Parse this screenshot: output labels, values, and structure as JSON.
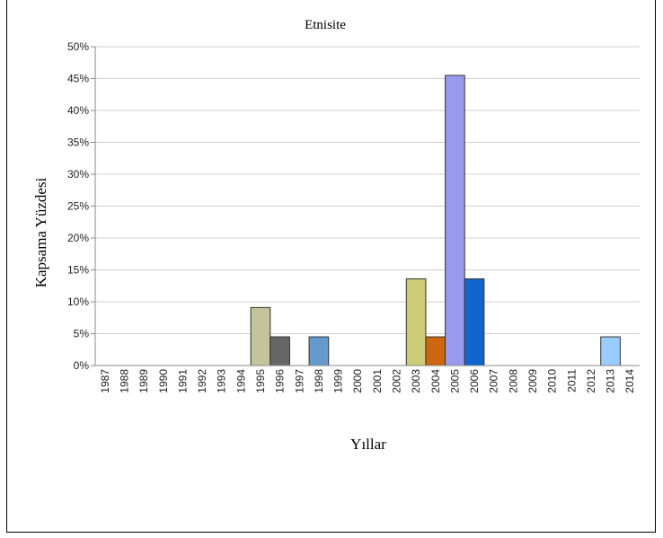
{
  "chart_data": {
    "type": "bar",
    "title": "Etnisite",
    "xlabel": "Yıllar",
    "ylabel": "Kapsama Yüzdesi",
    "ylim": [
      0,
      50
    ],
    "y_ticks": [
      "0%",
      "5%",
      "10%",
      "15%",
      "20%",
      "25%",
      "30%",
      "35%",
      "40%",
      "45%",
      "50%"
    ],
    "grid": true,
    "categories": [
      "1987",
      "1988",
      "1989",
      "1990",
      "1991",
      "1992",
      "1993",
      "1994",
      "1995",
      "1996",
      "1997",
      "1998",
      "1999",
      "2000",
      "2001",
      "2002",
      "2003",
      "2004",
      "2005",
      "2006",
      "2007",
      "2008",
      "2009",
      "2010",
      "2011",
      "2012",
      "2013",
      "2014"
    ],
    "values": [
      0,
      0,
      0,
      0,
      0,
      0,
      0,
      0,
      9.1,
      4.5,
      0,
      4.5,
      0,
      0,
      0,
      0,
      13.6,
      4.5,
      45.5,
      13.6,
      0,
      0,
      0,
      0,
      0,
      0,
      4.5,
      0
    ],
    "bar_colors": {
      "1995": "#c4c49a",
      "1996": "#666666",
      "1998": "#6699cc",
      "2003": "#cccc77",
      "2004": "#cc6611",
      "2005": "#9999ee",
      "2006": "#1166cc",
      "2013": "#99ccff"
    }
  }
}
